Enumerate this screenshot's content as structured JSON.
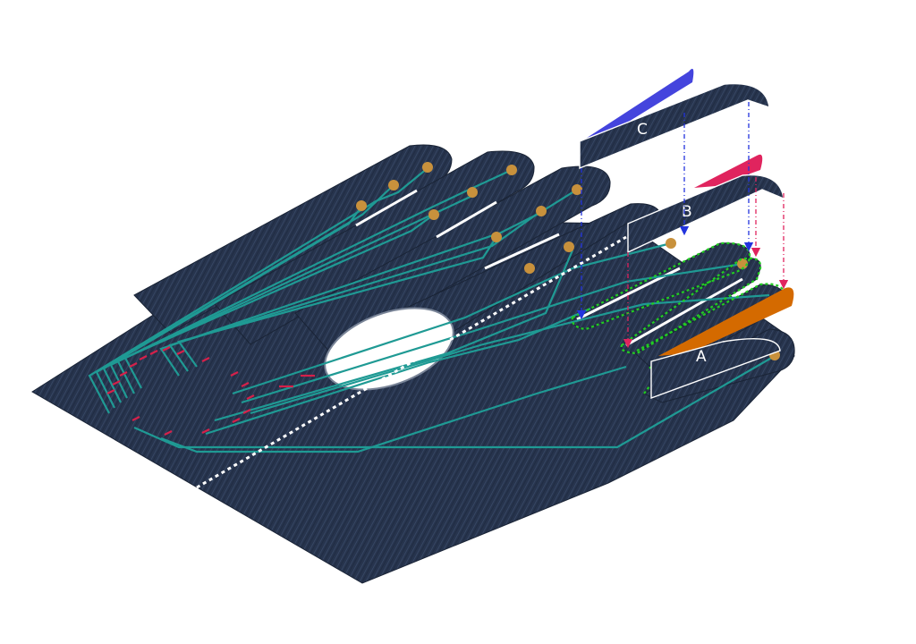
{
  "flaps": [
    {
      "id": "a",
      "label": "A",
      "accent": "#d46a00"
    },
    {
      "id": "b",
      "label": "B",
      "accent": "#e0245e"
    },
    {
      "id": "c",
      "label": "C",
      "accent": "#4444dd"
    }
  ],
  "colors": {
    "fabric": "#27344d",
    "fabric_texture": "#3b4c6b",
    "trace": "#1f9a94",
    "sensor": "#c8913c",
    "marker": "#d6204a",
    "seam": "#ffffff",
    "outline_highlight": "#22cc22",
    "arrow_blue": "#2233dd",
    "arrow_red": "#e0245e"
  }
}
